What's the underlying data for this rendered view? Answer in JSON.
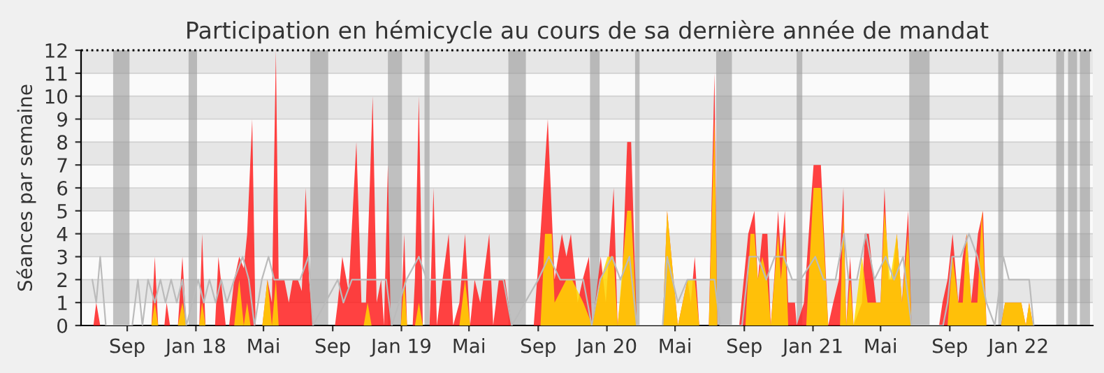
{
  "chart_data": {
    "type": "area",
    "title": "Participation en hémicycle au cours de sa dernière année de mandat",
    "ylabel": "Séances par semaine",
    "xlim": [
      "2017-06-11",
      "2022-05-13"
    ],
    "xticks": [
      {
        "value": "2017-09-01",
        "label": "Sep"
      },
      {
        "value": "2018-01-01",
        "label": "Jan 18"
      },
      {
        "value": "2018-05-01",
        "label": "Mai"
      },
      {
        "value": "2018-09-01",
        "label": "Sep"
      },
      {
        "value": "2019-01-01",
        "label": "Jan 19"
      },
      {
        "value": "2019-05-01",
        "label": "Mai"
      },
      {
        "value": "2019-09-01",
        "label": "Sep"
      },
      {
        "value": "2020-01-01",
        "label": "Jan 20"
      },
      {
        "value": "2020-05-01",
        "label": "Mai"
      },
      {
        "value": "2020-09-01",
        "label": "Sep"
      },
      {
        "value": "2021-01-01",
        "label": "Jan 21"
      },
      {
        "value": "2021-05-01",
        "label": "Mai"
      },
      {
        "value": "2021-09-01",
        "label": "Sep"
      },
      {
        "value": "2022-01-01",
        "label": "Jan 22"
      }
    ],
    "ylim": [
      0,
      12
    ],
    "yticks": [
      0,
      1,
      2,
      3,
      4,
      5,
      6,
      7,
      8,
      9,
      10,
      11,
      12
    ],
    "grid": "y",
    "legend": false,
    "marker": "none",
    "series": [
      {
        "type": "line",
        "color": "#bbbbbb",
        "x": [
          "2017-07-01",
          "2017-07-08",
          "2017-07-15",
          "2017-07-25",
          "2017-09-10",
          "2017-09-20",
          "2017-09-28",
          "2017-10-08",
          "2017-10-20",
          "2017-10-30",
          "2017-11-08",
          "2017-11-18",
          "2017-11-28",
          "2017-12-08",
          "2017-12-15",
          "2018-01-05",
          "2018-01-15",
          "2018-01-25",
          "2018-02-05",
          "2018-02-15",
          "2018-02-25",
          "2018-03-10",
          "2018-03-25",
          "2018-04-05",
          "2018-04-15",
          "2018-04-28",
          "2018-05-10",
          "2018-05-20",
          "2018-06-05",
          "2018-06-20",
          "2018-07-05",
          "2018-07-20",
          "2018-07-28",
          "2018-09-10",
          "2018-09-20",
          "2018-10-05",
          "2018-10-20",
          "2018-11-05",
          "2018-11-20",
          "2018-12-05",
          "2018-12-15",
          "2019-01-10",
          "2019-02-01",
          "2019-02-15",
          "2019-03-05",
          "2019-03-25",
          "2019-04-10",
          "2019-05-01",
          "2019-05-20",
          "2019-06-10",
          "2019-07-01",
          "2019-07-16",
          "2019-09-01",
          "2019-09-20",
          "2019-10-10",
          "2019-11-01",
          "2019-11-20",
          "2019-12-05",
          "2019-12-20",
          "2020-01-10",
          "2020-01-25",
          "2020-02-10",
          "2020-02-23",
          "2020-04-09",
          "2020-04-17",
          "2020-05-06",
          "2020-05-23",
          "2020-06-05",
          "2020-06-20",
          "2020-07-10",
          "2020-07-20",
          "2020-08-28",
          "2020-09-10",
          "2020-09-25",
          "2020-10-10",
          "2020-10-25",
          "2020-11-10",
          "2020-11-25",
          "2020-12-10",
          "2021-01-05",
          "2021-01-20",
          "2021-02-10",
          "2021-02-25",
          "2021-03-05",
          "2021-03-20",
          "2021-04-05",
          "2021-04-20",
          "2021-05-10",
          "2021-05-25",
          "2021-06-10",
          "2021-06-25",
          "2021-08-20",
          "2021-08-28",
          "2021-09-05",
          "2021-09-20",
          "2021-10-05",
          "2021-10-20",
          "2021-11-05",
          "2021-11-20",
          "2021-12-05",
          "2021-12-15",
          "2022-01-01",
          "2022-01-10",
          "2022-01-20",
          "2022-01-28"
        ],
        "values": [
          2,
          1,
          3,
          0,
          0,
          2,
          0,
          2,
          1,
          2,
          1,
          2,
          1,
          2,
          0,
          2,
          1,
          2,
          1,
          2,
          1,
          2,
          3,
          2,
          0,
          2,
          3,
          2,
          2,
          2,
          2,
          3,
          0,
          2,
          1,
          2,
          2,
          2,
          2,
          2,
          0,
          2,
          3,
          2,
          2,
          2,
          2,
          2,
          2,
          2,
          2,
          0,
          2,
          3,
          2,
          2,
          2,
          0,
          2,
          3,
          2,
          3,
          0,
          0,
          3,
          1,
          2,
          2,
          2,
          2,
          0,
          0,
          3,
          3,
          2,
          3,
          3,
          2,
          2,
          3,
          2,
          2,
          4,
          2,
          2,
          4,
          2,
          3,
          2,
          3,
          0,
          0,
          1,
          3,
          3,
          4,
          3,
          1,
          0,
          3,
          2,
          2,
          2,
          2,
          0
        ]
      },
      {
        "color": "#ff2020",
        "x": [
          "2017-06-11",
          "2017-07-03",
          "2017-07-08",
          "2017-07-15",
          "2017-10-14",
          "2017-10-20",
          "2017-10-26",
          "2017-11-06",
          "2017-11-10",
          "2017-11-16",
          "2017-11-30",
          "2017-12-08",
          "2017-12-15",
          "2018-01-07",
          "2018-01-12",
          "2018-01-18",
          "2018-02-04",
          "2018-02-10",
          "2018-02-23",
          "2018-03-01",
          "2018-03-10",
          "2018-03-19",
          "2018-03-27",
          "2018-04-02",
          "2018-04-11",
          "2018-04-17",
          "2018-04-29",
          "2018-05-08",
          "2018-05-16",
          "2018-05-23",
          "2018-05-28",
          "2018-06-07",
          "2018-06-15",
          "2018-06-22",
          "2018-07-01",
          "2018-07-08",
          "2018-07-15",
          "2018-07-21",
          "2018-07-28",
          "2018-09-05",
          "2018-09-10",
          "2018-09-18",
          "2018-09-29",
          "2018-10-13",
          "2018-10-22",
          "2018-10-30",
          "2018-11-11",
          "2018-11-18",
          "2018-11-26",
          "2018-12-01",
          "2018-12-08",
          "2018-12-13",
          "2018-12-31",
          "2019-01-06",
          "2019-01-11",
          "2019-01-21",
          "2019-01-25",
          "2019-02-01",
          "2019-02-08",
          "2019-02-20",
          "2019-02-27",
          "2019-03-05",
          "2019-03-15",
          "2019-03-26",
          "2019-04-03",
          "2019-04-14",
          "2019-04-24",
          "2019-05-03",
          "2019-05-11",
          "2019-05-21",
          "2019-06-06",
          "2019-06-13",
          "2019-06-23",
          "2019-07-04",
          "2019-07-16",
          "2019-08-24",
          "2019-09-05",
          "2019-09-18",
          "2019-09-30",
          "2019-10-13",
          "2019-10-21",
          "2019-10-29",
          "2019-11-10",
          "2019-11-19",
          "2019-11-30",
          "2019-12-06",
          "2019-12-21",
          "2019-12-30",
          "2020-01-13",
          "2020-01-20",
          "2020-01-28",
          "2020-02-06",
          "2020-02-13",
          "2020-02-23",
          "2020-04-09",
          "2020-04-17",
          "2020-05-06",
          "2020-05-23",
          "2020-05-29",
          "2020-06-05",
          "2020-06-13",
          "2020-06-30",
          "2020-07-10",
          "2020-07-15",
          "2020-08-23",
          "2020-09-08",
          "2020-09-19",
          "2020-09-25",
          "2020-10-03",
          "2020-10-12",
          "2020-10-18",
          "2020-10-24",
          "2020-10-31",
          "2020-11-05",
          "2020-11-12",
          "2020-11-18",
          "2020-11-30",
          "2020-12-03",
          "2020-12-16",
          "2021-01-02",
          "2021-01-15",
          "2021-01-28",
          "2021-02-06",
          "2021-02-16",
          "2021-02-24",
          "2021-03-01",
          "2021-03-08",
          "2021-03-14",
          "2021-03-29",
          "2021-04-03",
          "2021-04-10",
          "2021-04-23",
          "2021-05-01",
          "2021-05-08",
          "2021-05-15",
          "2021-05-22",
          "2021-05-30",
          "2021-06-08",
          "2021-06-19",
          "2021-06-25",
          "2021-08-13",
          "2021-08-19",
          "2021-08-28",
          "2021-09-06",
          "2021-09-16",
          "2021-09-24",
          "2021-10-01",
          "2021-10-09",
          "2021-10-21",
          "2021-10-30",
          "2021-11-05",
          "2021-12-01",
          "2021-12-08",
          "2022-01-06",
          "2022-01-14",
          "2022-01-20",
          "2022-01-27",
          "2022-05-13"
        ],
        "values": [
          0,
          0,
          1,
          0,
          0,
          3,
          0,
          0,
          1,
          0,
          0,
          3,
          0,
          0,
          4,
          0,
          0,
          3,
          0,
          0,
          2,
          3,
          2.5,
          4,
          9,
          0,
          0,
          2,
          1,
          12,
          2,
          2,
          1,
          2,
          2,
          1.5,
          6,
          2,
          0,
          0,
          1,
          3,
          1.5,
          8,
          1,
          1,
          10,
          1,
          2,
          0,
          7,
          0,
          0,
          4,
          0,
          0,
          2,
          10,
          0,
          0,
          6,
          0,
          2,
          4,
          0,
          1,
          4,
          0,
          2,
          1,
          4,
          0,
          2,
          2,
          0,
          0,
          4,
          9,
          2,
          4,
          3,
          4,
          1,
          2,
          3,
          0,
          3,
          1,
          6,
          0,
          2,
          8,
          8,
          0,
          0,
          5,
          0,
          2,
          1,
          3,
          0,
          0,
          11,
          0,
          0,
          4,
          5,
          2,
          4,
          4,
          0,
          2,
          5,
          3,
          5,
          1,
          1,
          0,
          1,
          7,
          7,
          0,
          1,
          2,
          6,
          0,
          3,
          0,
          1,
          4,
          4,
          1,
          1,
          6,
          2,
          2,
          4,
          1,
          5,
          0,
          0,
          1,
          2,
          4,
          1,
          3,
          4,
          1,
          4,
          5,
          0,
          0,
          1,
          1,
          0,
          1,
          0,
          0
        ]
      },
      {
        "color": "#ffd700",
        "x": [
          "2017-10-14",
          "2017-10-20",
          "2017-10-26",
          "2017-11-30",
          "2017-12-08",
          "2017-12-15",
          "2018-01-07",
          "2018-01-12",
          "2018-01-18",
          "2018-03-10",
          "2018-03-19",
          "2018-03-27",
          "2018-04-02",
          "2018-04-08",
          "2018-04-29",
          "2018-05-08",
          "2018-05-16",
          "2018-05-23",
          "2018-05-28",
          "2018-10-26",
          "2018-11-02",
          "2018-11-09",
          "2018-12-31",
          "2019-01-06",
          "2019-01-11",
          "2019-01-25",
          "2019-02-01",
          "2019-02-08",
          "2019-04-14",
          "2019-04-24",
          "2019-05-03",
          "2019-09-05",
          "2019-09-13",
          "2019-09-25",
          "2019-09-30",
          "2019-10-21",
          "2019-10-31",
          "2019-11-20",
          "2019-12-06",
          "2019-12-21",
          "2020-01-02",
          "2020-01-13",
          "2020-01-20",
          "2020-02-06",
          "2020-02-13",
          "2020-02-23",
          "2020-04-09",
          "2020-04-17",
          "2020-05-06",
          "2020-05-23",
          "2020-06-05",
          "2020-06-13",
          "2020-06-30",
          "2020-07-10",
          "2020-07-15",
          "2020-09-03",
          "2020-09-12",
          "2020-09-19",
          "2020-09-25",
          "2020-10-03",
          "2020-10-12",
          "2020-10-18",
          "2020-10-31",
          "2020-11-05",
          "2020-11-12",
          "2020-11-18",
          "2020-12-20",
          "2021-01-02",
          "2021-01-15",
          "2021-01-28",
          "2021-02-18",
          "2021-02-24",
          "2021-03-01",
          "2021-03-08",
          "2021-03-14",
          "2021-03-29",
          "2021-04-08",
          "2021-04-20",
          "2021-05-01",
          "2021-05-08",
          "2021-05-18",
          "2021-05-30",
          "2021-06-08",
          "2021-06-19",
          "2021-06-25",
          "2021-08-28",
          "2021-09-06",
          "2021-09-16",
          "2021-09-24",
          "2021-10-01",
          "2021-10-09",
          "2021-10-20",
          "2021-10-28",
          "2021-11-05",
          "2021-12-01",
          "2021-12-08",
          "2022-01-06",
          "2022-01-14",
          "2022-01-20",
          "2022-01-27"
        ],
        "values": [
          0,
          1,
          0,
          0,
          1,
          0,
          0,
          1,
          0,
          0,
          2,
          0,
          1,
          0,
          0,
          2,
          0,
          2,
          0,
          0,
          1,
          0,
          0,
          2,
          0,
          0,
          1,
          0,
          0,
          2,
          0,
          0,
          4,
          4,
          1,
          2,
          2,
          1,
          0,
          2,
          3,
          3,
          0,
          5,
          5,
          0,
          0,
          5,
          0,
          2,
          2,
          0,
          0,
          9,
          0,
          0,
          4,
          4,
          2,
          3,
          2,
          0,
          4,
          2,
          4,
          0,
          0,
          6,
          6,
          0,
          0,
          5,
          0,
          2,
          0,
          3,
          1,
          1,
          1,
          5,
          2,
          4,
          1,
          4,
          0,
          0,
          3,
          1,
          1,
          4,
          1,
          1,
          5,
          0,
          0,
          1,
          1,
          0,
          1,
          0
        ]
      }
    ],
    "ref_lines": [
      {
        "axis": "y",
        "value": 12,
        "label": null,
        "color": "#000000",
        "line_style": "dotted"
      }
    ],
    "bands": [
      {
        "axis": "x",
        "from": "2017-08-07",
        "to": "2017-09-05",
        "label": null,
        "color": "#999999"
      },
      {
        "axis": "x",
        "from": "2017-12-19",
        "to": "2018-01-03",
        "label": null,
        "color": "#999999"
      },
      {
        "axis": "x",
        "from": "2018-07-23",
        "to": "2018-08-24",
        "label": null,
        "color": "#999999"
      },
      {
        "axis": "x",
        "from": "2018-12-08",
        "to": "2019-01-02",
        "label": null,
        "color": "#999999"
      },
      {
        "axis": "x",
        "from": "2019-02-11",
        "to": "2019-02-20",
        "label": null,
        "color": "#999999"
      },
      {
        "axis": "x",
        "from": "2019-07-10",
        "to": "2019-08-10",
        "label": null,
        "color": "#999999"
      },
      {
        "axis": "x",
        "from": "2019-12-02",
        "to": "2019-12-19",
        "label": null,
        "color": "#999999"
      },
      {
        "axis": "x",
        "from": "2020-02-20",
        "to": "2020-02-28",
        "label": null,
        "color": "#999999"
      },
      {
        "axis": "x",
        "from": "2020-07-13",
        "to": "2020-08-10",
        "label": null,
        "color": "#999999"
      },
      {
        "axis": "x",
        "from": "2020-12-03",
        "to": "2020-12-13",
        "label": null,
        "color": "#999999"
      },
      {
        "axis": "x",
        "from": "2021-06-21",
        "to": "2021-07-27",
        "label": null,
        "color": "#999999"
      },
      {
        "axis": "x",
        "from": "2021-11-26",
        "to": "2021-12-05",
        "label": null,
        "color": "#999999"
      },
      {
        "axis": "x",
        "from": "2022-03-09",
        "to": "2022-03-23",
        "label": null,
        "color": "#999999"
      },
      {
        "axis": "x",
        "from": "2022-03-30",
        "to": "2022-04-15",
        "label": null,
        "color": "#999999"
      },
      {
        "axis": "x",
        "from": "2022-04-20",
        "to": "2022-05-08",
        "label": null,
        "color": "#999999"
      }
    ]
  }
}
